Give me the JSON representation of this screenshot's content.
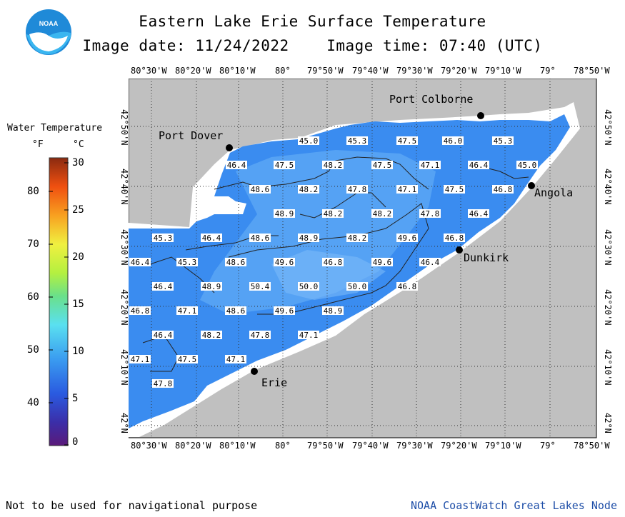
{
  "title": "Eastern Lake Erie Surface Temperature",
  "subtitle": "Image date: 11/24/2022    Image time: 07:40 (UTC)",
  "legend": {
    "title": "Water Temperature",
    "unit_f": "°F",
    "unit_c": "°C",
    "f_ticks": [
      "80",
      "70",
      "60",
      "50",
      "40"
    ],
    "c_ticks": [
      "30",
      "25",
      "20",
      "15",
      "10",
      "5",
      "0"
    ]
  },
  "top_axis": [
    "80°30'W",
    "80°20'W",
    "80°10'W",
    "80°",
    "79°50'W",
    "79°40'W",
    "79°30'W",
    "79°20'W",
    "79°10'W",
    "79°",
    "78°50'W"
  ],
  "bottom_axis": [
    "80°30'W",
    "80°20'W",
    "80°10'W",
    "80°",
    "79°50'W",
    "79°40'W",
    "79°30'W",
    "79°20'W",
    "79°10'W",
    "79°",
    "78°50'W"
  ],
  "left_axis": [
    "42°50'N",
    "42°40'N",
    "42°30'N",
    "42°20'N",
    "42°10'N",
    "42°N"
  ],
  "right_axis": [
    "42°50'N",
    "42°40'N",
    "42°30'N",
    "42°20'N",
    "42°10'N",
    "42°N"
  ],
  "cities": {
    "port_colborne": "Port Colborne",
    "port_dover": "Port Dover",
    "angola": "Angola",
    "dunkirk": "Dunkirk",
    "erie": "Erie"
  },
  "temps": {
    "r1": [
      "45.0",
      "45.3",
      "47.5",
      "46.0",
      "45.3"
    ],
    "r2": [
      "46.4",
      "47.5",
      "48.2",
      "47.5",
      "47.1",
      "46.4",
      "45.0"
    ],
    "r3": [
      "48.6",
      "48.2",
      "47.8",
      "47.1",
      "47.5",
      "46.8"
    ],
    "r4": [
      "48.9",
      "48.2",
      "48.2",
      "47.8",
      "46.4"
    ],
    "r5": [
      "45.3",
      "46.4",
      "48.6",
      "48.9",
      "48.2",
      "49.6",
      "46.8"
    ],
    "r6": [
      "46.4",
      "45.3",
      "48.6",
      "49.6",
      "46.8",
      "49.6",
      "46.4"
    ],
    "r7": [
      "46.4",
      "48.9",
      "50.4",
      "50.0",
      "50.0",
      "46.8"
    ],
    "r8": [
      "46.8",
      "47.1",
      "48.6",
      "49.6",
      "48.9"
    ],
    "r9": [
      "46.4",
      "48.2",
      "47.8",
      "47.1"
    ],
    "r10": [
      "47.1",
      "47.5",
      "47.1"
    ],
    "r11": [
      "47.8"
    ]
  },
  "colors": {
    "land": "#c0c0c0",
    "water": "#3a8cf0",
    "nodata": "#ffffff"
  },
  "footer_left": "Not to be used for navigational purpose",
  "footer_right": "NOAA CoastWatch Great Lakes Node"
}
